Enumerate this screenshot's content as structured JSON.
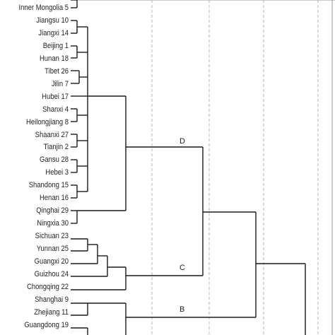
{
  "dendrogram": {
    "leaves": [
      "Inner Mongolia 5",
      "Jiangsu 10",
      "Jiangxi 14",
      "Beijing 1",
      "Hunan 18",
      "Tibet 26",
      "Jilin 7",
      "Hubei 17",
      "Shanxi 4",
      "Heilongjiang 8",
      "Shaanxi 27",
      "Tianjin 2",
      "Gansu 28",
      "Hebei 3",
      "Shandong 15",
      "Henan 16",
      "Qinghai 29",
      "Ningxia 30",
      "Sichuan 23",
      "Yunnan 25",
      "Guangxi 20",
      "Guizhou 24",
      "Chongqing 22",
      "Shanghai 9",
      "Zhejiang 11",
      "Guangdong 19"
    ],
    "cluster_labels": {
      "D": "D",
      "C": "C",
      "B": "B"
    }
  }
}
